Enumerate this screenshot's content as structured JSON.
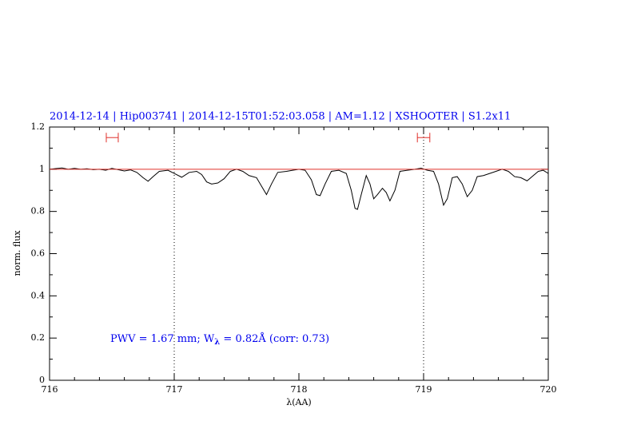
{
  "chart_data": {
    "type": "line",
    "title": "2014-12-14 | Hip003741 | 2014-12-15T01:52:03.058 | AM=1.12 | XSHOOTER | S1.2x11",
    "xlabel": "λ(AA)",
    "ylabel": "norm. flux",
    "annotation": [
      "PWV = 1.67 mm; W",
      "λ",
      " = 0.82Å (corr: 0.73)"
    ],
    "xlim": [
      716,
      720
    ],
    "ylim": [
      0,
      1.2
    ],
    "xticks": [
      716,
      717,
      718,
      719,
      720
    ],
    "yticks": [
      0,
      0.2,
      0.4,
      0.6,
      0.8,
      1,
      1.2
    ],
    "xminor": [
      716.2,
      716.4,
      716.6,
      716.8,
      717.2,
      717.4,
      717.6,
      717.8,
      718.2,
      718.4,
      718.6,
      718.8,
      719.2,
      719.4,
      719.6,
      719.8
    ],
    "yminor": [
      0.1,
      0.3,
      0.5,
      0.7,
      0.9,
      1.1
    ],
    "vlines": [
      717,
      719
    ],
    "intervals": [
      [
        716.455,
        716.551
      ],
      [
        718.95,
        719.05
      ]
    ],
    "interval_level": 1.15,
    "interval_color": "#e0302a",
    "series": [
      {
        "color": "#000000",
        "x": [
          716.0,
          716.05,
          716.1,
          716.15,
          716.2,
          716.25,
          716.3,
          716.35,
          716.4,
          716.45,
          716.5,
          716.55,
          716.6,
          716.65,
          716.7,
          716.75,
          716.79,
          716.83,
          716.88,
          716.95,
          717.0,
          717.06,
          717.12,
          717.18,
          717.22,
          717.26,
          717.3,
          717.35,
          717.4,
          717.45,
          717.5,
          717.55,
          717.6,
          717.66,
          717.7,
          717.74,
          717.78,
          717.83,
          717.9,
          717.95,
          718.0,
          718.05,
          718.1,
          718.14,
          718.17,
          718.21,
          718.26,
          718.32,
          718.38,
          718.42,
          718.45,
          718.47,
          718.5,
          718.54,
          718.57,
          718.6,
          718.63,
          718.67,
          718.7,
          718.73,
          718.77,
          718.81,
          718.87,
          718.93,
          718.98,
          719.03,
          719.08,
          719.12,
          719.16,
          719.19,
          719.23,
          719.27,
          719.31,
          719.35,
          719.39,
          719.43,
          719.48,
          719.53,
          719.58,
          719.63,
          719.68,
          719.73,
          719.78,
          719.83,
          719.88,
          719.92,
          719.96,
          720.0
        ],
        "values": [
          1.0,
          1.003,
          1.006,
          1.0,
          1.004,
          1.0,
          1.002,
          0.998,
          1.0,
          0.995,
          1.004,
          0.998,
          0.992,
          0.997,
          0.985,
          0.96,
          0.943,
          0.965,
          0.99,
          0.995,
          0.98,
          0.962,
          0.985,
          0.99,
          0.975,
          0.94,
          0.93,
          0.935,
          0.955,
          0.99,
          1.0,
          0.99,
          0.97,
          0.96,
          0.92,
          0.88,
          0.93,
          0.985,
          0.99,
          0.995,
          1.0,
          0.995,
          0.95,
          0.88,
          0.875,
          0.93,
          0.99,
          0.995,
          0.98,
          0.9,
          0.815,
          0.81,
          0.88,
          0.97,
          0.93,
          0.86,
          0.88,
          0.91,
          0.89,
          0.85,
          0.9,
          0.99,
          0.995,
          1.0,
          1.005,
          0.995,
          0.99,
          0.93,
          0.83,
          0.86,
          0.96,
          0.965,
          0.93,
          0.87,
          0.9,
          0.965,
          0.97,
          0.98,
          0.99,
          1.0,
          0.99,
          0.965,
          0.96,
          0.945,
          0.97,
          0.99,
          0.995,
          0.98
        ]
      },
      {
        "color": "#e0302a",
        "x": [
          716,
          720
        ],
        "values": [
          1,
          1
        ]
      }
    ]
  }
}
